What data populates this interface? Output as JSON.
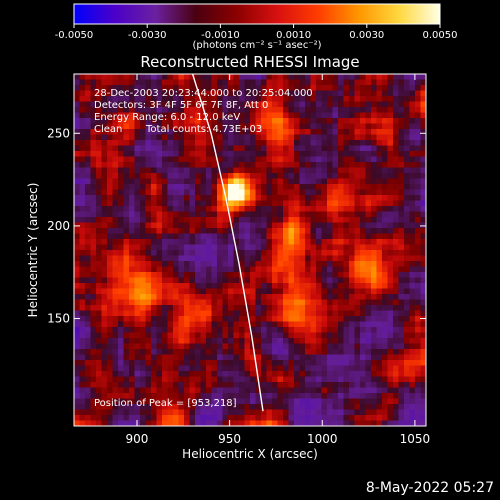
{
  "chart_data": {
    "type": "heatmap",
    "title": "Reconstructed RHESSI Image",
    "xlabel": "Heliocentric X (arcsec)",
    "ylabel": "Heliocentric Y (arcsec)",
    "xlim": [
      866,
      1056
    ],
    "ylim": [
      92,
      282
    ],
    "x_ticks": [
      900,
      950,
      1000,
      1050
    ],
    "y_ticks": [
      150,
      200,
      250
    ],
    "colorbar": {
      "range": [
        -0.005,
        0.005
      ],
      "ticks": [
        "-0.0050",
        "-0.0030",
        "-0.0010",
        "0.0010",
        "0.0030",
        "0.0050"
      ],
      "units": "(photons cm⁻² s⁻¹ asec⁻²)",
      "colors": [
        "#0000ff",
        "#4b00c8",
        "#6b20a0",
        "#4a0010",
        "#8b0000",
        "#d81010",
        "#ff3c00",
        "#ff9600",
        "#ffd840",
        "#ffffe6"
      ]
    },
    "annotations": {
      "time": "28-Dec-2003 20:23:44.000 to 20:25:04.000",
      "detectors": "Detectors: 3F 4F 5F 6F 7F 8F, Att 0",
      "energy": "Energy Range: 6.0 - 12.0 keV",
      "clean": "Clean",
      "total_counts": "Total counts: 4.73E+03",
      "peak": "Position of Peak = [953,218]"
    },
    "peak": {
      "x": 953,
      "y": 218,
      "value": 0.005
    },
    "sources": [
      {
        "x": 953,
        "y": 218,
        "sx": 6,
        "sy": 7,
        "value": 0.0055
      },
      {
        "x": 985,
        "y": 190,
        "sx": 8,
        "sy": 14,
        "value": 0.0028
      },
      {
        "x": 975,
        "y": 250,
        "sx": 7,
        "sy": 9,
        "value": 0.0024
      },
      {
        "x": 990,
        "y": 155,
        "sx": 10,
        "sy": 9,
        "value": 0.0026
      },
      {
        "x": 1025,
        "y": 180,
        "sx": 6,
        "sy": 8,
        "value": 0.0024
      },
      {
        "x": 1010,
        "y": 215,
        "sx": 9,
        "sy": 8,
        "value": 0.0016
      },
      {
        "x": 900,
        "y": 165,
        "sx": 12,
        "sy": 10,
        "value": 0.0014
      },
      {
        "x": 895,
        "y": 255,
        "sx": 8,
        "sy": 8,
        "value": 0.0014
      },
      {
        "x": 1035,
        "y": 255,
        "sx": 8,
        "sy": 9,
        "value": 0.0014
      },
      {
        "x": 930,
        "y": 150,
        "sx": 8,
        "sy": 8,
        "value": 0.0012
      }
    ],
    "limb": [
      [
        930,
        282
      ],
      [
        940,
        250
      ],
      [
        948,
        215
      ],
      [
        955,
        180
      ],
      [
        962,
        140
      ],
      [
        968,
        100
      ]
    ]
  },
  "footer": {
    "timestamp": "8-May-2022 05:27"
  }
}
